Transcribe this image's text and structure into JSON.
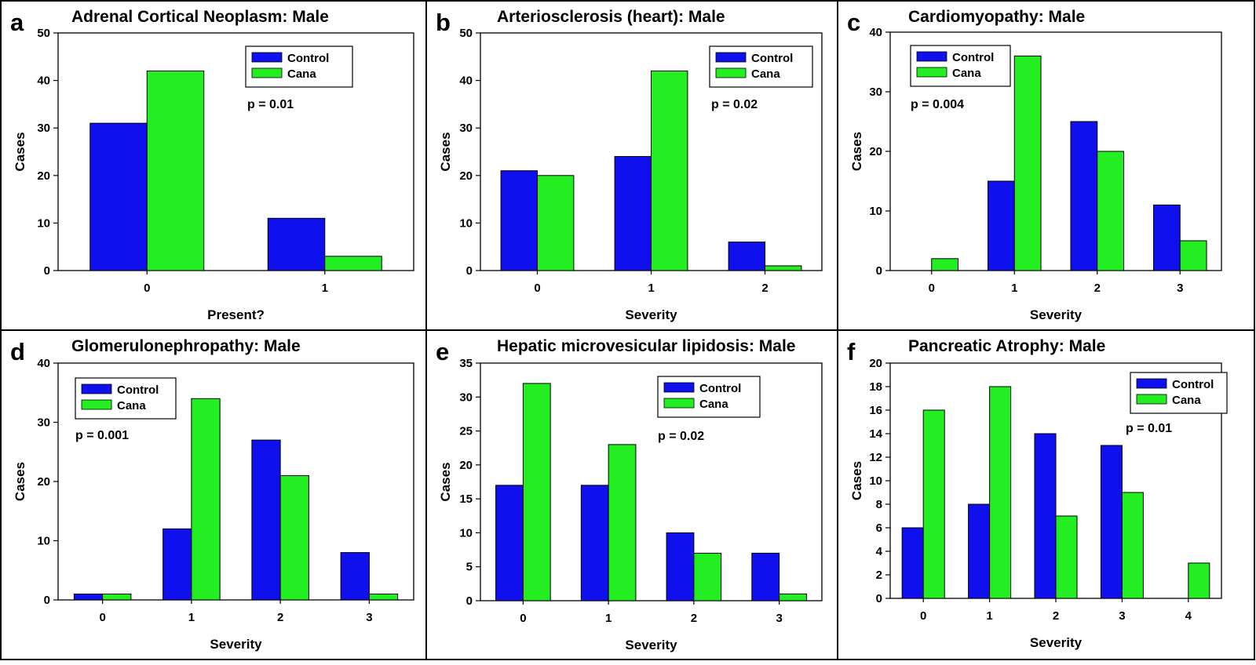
{
  "colors": {
    "control": "#1010ee",
    "cana": "#22ee22",
    "border": "#000000"
  },
  "chart_data": [
    {
      "letter": "a",
      "type": "bar",
      "title": "Adrenal Cortical Neoplasm: Male",
      "xlabel": "Present?",
      "ylabel": "Cases",
      "categories": [
        "0",
        "1"
      ],
      "ylim": [
        0,
        50
      ],
      "yticks": [
        "0",
        "10",
        "20",
        "30",
        "40",
        "50"
      ],
      "series": [
        {
          "name": "Control",
          "values": [
            31,
            11
          ]
        },
        {
          "name": "Cana",
          "values": [
            42,
            3
          ]
        }
      ],
      "pvalue": "p = 0.01",
      "legend": "top-right"
    },
    {
      "letter": "b",
      "type": "bar",
      "title": "Arteriosclerosis (heart): Male",
      "xlabel": "Severity",
      "ylabel": "Cases",
      "categories": [
        "0",
        "1",
        "2"
      ],
      "ylim": [
        0,
        50
      ],
      "yticks": [
        "0",
        "10",
        "20",
        "30",
        "40",
        "50"
      ],
      "series": [
        {
          "name": "Control",
          "values": [
            21,
            24,
            6
          ]
        },
        {
          "name": "Cana",
          "values": [
            20,
            42,
            1
          ]
        }
      ],
      "pvalue": "p = 0.02",
      "legend": "top-right"
    },
    {
      "letter": "c",
      "type": "bar",
      "title": "Cardiomyopathy: Male",
      "xlabel": "Severity",
      "ylabel": "Cases",
      "categories": [
        "0",
        "1",
        "2",
        "3"
      ],
      "ylim": [
        0,
        40
      ],
      "yticks": [
        "0",
        "10",
        "20",
        "30",
        "40"
      ],
      "series": [
        {
          "name": "Control",
          "values": [
            0,
            15,
            25,
            11
          ]
        },
        {
          "name": "Cana",
          "values": [
            2,
            36,
            20,
            5
          ]
        }
      ],
      "pvalue": "p = 0.004",
      "legend": "top-left"
    },
    {
      "letter": "d",
      "type": "bar",
      "title": "Glomerulonephropathy: Male",
      "xlabel": "Severity",
      "ylabel": "Cases",
      "categories": [
        "0",
        "1",
        "2",
        "3"
      ],
      "ylim": [
        0,
        40
      ],
      "yticks": [
        "0",
        "10",
        "20",
        "30",
        "40"
      ],
      "series": [
        {
          "name": "Control",
          "values": [
            1,
            12,
            27,
            8
          ]
        },
        {
          "name": "Cana",
          "values": [
            1,
            34,
            21,
            1
          ]
        }
      ],
      "pvalue": "p = 0.001",
      "legend": "top-left"
    },
    {
      "letter": "e",
      "type": "bar",
      "title": "Hepatic microvesicular lipidosis: Male",
      "xlabel": "Severity",
      "ylabel": "Cases",
      "categories": [
        "0",
        "1",
        "2",
        "3"
      ],
      "ylim": [
        0,
        35
      ],
      "yticks": [
        "0",
        "5",
        "10",
        "15",
        "20",
        "25",
        "30",
        "35"
      ],
      "series": [
        {
          "name": "Control",
          "values": [
            17,
            17,
            10,
            7
          ]
        },
        {
          "name": "Cana",
          "values": [
            32,
            23,
            7,
            1
          ]
        }
      ],
      "pvalue": "p = 0.02",
      "legend": "top-right"
    },
    {
      "letter": "f",
      "type": "bar",
      "title": "Pancreatic Atrophy: Male",
      "xlabel": "Severity",
      "ylabel": "Cases",
      "categories": [
        "0",
        "1",
        "2",
        "3",
        "4"
      ],
      "ylim": [
        0,
        20
      ],
      "yticks": [
        "0",
        "2",
        "4",
        "6",
        "8",
        "10",
        "12",
        "14",
        "16",
        "18",
        "20"
      ],
      "series": [
        {
          "name": "Control",
          "values": [
            6,
            8,
            14,
            13,
            0
          ]
        },
        {
          "name": "Cana",
          "values": [
            16,
            18,
            7,
            9,
            3
          ]
        }
      ],
      "pvalue": "p = 0.01",
      "legend": "top-right"
    }
  ]
}
